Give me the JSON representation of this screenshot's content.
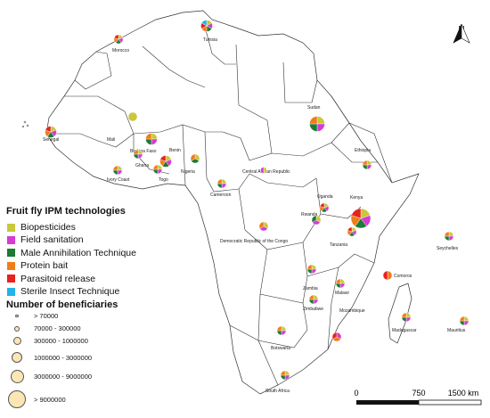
{
  "legend": {
    "title": "Fruit fly IPM technologies",
    "items": [
      {
        "label": "Biopesticides",
        "color": "#c8c83a"
      },
      {
        "label": "Field sanitation",
        "color": "#d63bd6"
      },
      {
        "label": "Male Annihilation Technique",
        "color": "#1e7a34"
      },
      {
        "label": "Protein bait",
        "color": "#f07d1a"
      },
      {
        "label": "Parasitoid release",
        "color": "#e8231e"
      },
      {
        "label": "Sterile Insect Technique",
        "color": "#22b4e6"
      }
    ]
  },
  "size_legend": {
    "title": "Number of beneficiaries",
    "items": [
      {
        "label": "> 70000"
      },
      {
        "label": "70000 - 300000"
      },
      {
        "label": "300000 - 1000000"
      },
      {
        "label": "1000000 - 3000000"
      },
      {
        "label": "3000000 - 9000000"
      },
      {
        "label": "> 9000000"
      }
    ]
  },
  "countries": {
    "morocco": "Morocco",
    "tunisia": "Tunisia",
    "sudan": "Sudan",
    "senegal": "Senegal",
    "mali": "Mali",
    "burkina": "Burkina Faso",
    "benin": "Benin",
    "ghana": "Ghana",
    "ivory": "Ivory Coast",
    "togo": "Togo",
    "nigeria": "Nigeria",
    "car": "Central African Republic",
    "ethiopia": "Ethiopia",
    "cameroon": "Cameroon",
    "uganda": "Uganda",
    "kenya": "Kenya",
    "rwanda": "Rwanda",
    "drc": "Democratic Republic of the Congo",
    "tanzania": "Tanzania",
    "seychelles": "Seychelles",
    "comoros": "Comoros",
    "zambia": "Zambia",
    "malawi": "Malawi",
    "zimbabwe": "Zimbabwe",
    "mozambique": "Mozambique",
    "madagascar": "Madagascar",
    "mauritius": "Mauritius",
    "botswana": "Botswana",
    "south_africa": "South Africa"
  },
  "scale": {
    "t0": "0",
    "t1": "750",
    "t2": "1500 km"
  },
  "north_arrow": {
    "label": "N",
    "icon": "north-arrow-icon"
  },
  "pies": [
    {
      "country": "Morocco",
      "size_class": 2,
      "tech": [
        "Biopesticides",
        "Field sanitation",
        "Male Annihilation Technique",
        "Protein bait",
        "Parasitoid release"
      ]
    },
    {
      "country": "Tunisia",
      "size_class": 3,
      "tech": [
        "Biopesticides",
        "Field sanitation",
        "Male Annihilation Technique",
        "Protein bait",
        "Parasitoid release",
        "Sterile Insect Technique"
      ]
    },
    {
      "country": "Sudan",
      "size_class": 4,
      "tech": [
        "Biopesticides",
        "Field sanitation",
        "Male Annihilation Technique",
        "Protein bait"
      ]
    },
    {
      "country": "Mali",
      "size_class": 2,
      "tech": [
        "Biopesticides"
      ]
    },
    {
      "country": "Senegal",
      "size_class": 3,
      "tech": [
        "Biopesticides",
        "Field sanitation",
        "Male Annihilation Technique",
        "Protein bait",
        "Parasitoid release"
      ]
    },
    {
      "country": "Burkina Faso",
      "size_class": 3,
      "tech": [
        "Biopesticides",
        "Field sanitation",
        "Male Annihilation Technique",
        "Protein bait"
      ]
    },
    {
      "country": "Benin",
      "size_class": 3,
      "tech": [
        "Biopesticides",
        "Field sanitation",
        "Male Annihilation Technique",
        "Protein bait",
        "Parasitoid release"
      ]
    },
    {
      "country": "Ghana",
      "size_class": 2,
      "tech": [
        "Biopesticides",
        "Field sanitation",
        "Male Annihilation Technique",
        "Protein bait"
      ]
    },
    {
      "country": "Ivory Coast",
      "size_class": 2,
      "tech": [
        "Biopesticides",
        "Field sanitation",
        "Male Annihilation Technique",
        "Protein bait"
      ]
    },
    {
      "country": "Togo",
      "size_class": 2,
      "tech": [
        "Biopesticides",
        "Field sanitation",
        "Male Annihilation Technique",
        "Protein bait"
      ]
    },
    {
      "country": "Nigeria",
      "size_class": 2,
      "tech": [
        "Biopesticides",
        "Male Annihilation Technique",
        "Protein bait"
      ]
    },
    {
      "country": "Cameroon",
      "size_class": 2,
      "tech": [
        "Biopesticides",
        "Field sanitation",
        "Male Annihilation Technique",
        "Protein bait"
      ]
    },
    {
      "country": "Central African Republic",
      "size_class": 1,
      "tech": [
        "Biopesticides",
        "Field sanitation"
      ]
    },
    {
      "country": "Ethiopia",
      "size_class": 2,
      "tech": [
        "Biopesticides",
        "Field sanitation",
        "Male Annihilation Technique",
        "Protein bait"
      ]
    },
    {
      "country": "Uganda",
      "size_class": 2,
      "tech": [
        "Biopesticides",
        "Field sanitation",
        "Male Annihilation Technique",
        "Protein bait",
        "Parasitoid release"
      ]
    },
    {
      "country": "Kenya",
      "size_class": 5,
      "tech": [
        "Biopesticides",
        "Field sanitation",
        "Male Annihilation Technique",
        "Protein bait",
        "Parasitoid release"
      ]
    },
    {
      "country": "Rwanda",
      "size_class": 2,
      "tech": [
        "Biopesticides",
        "Field sanitation",
        "Male Annihilation Technique"
      ]
    },
    {
      "country": "Democratic Republic of the Congo",
      "size_class": 2,
      "tech": [
        "Biopesticides",
        "Field sanitation",
        "Protein bait"
      ]
    },
    {
      "country": "Tanzania",
      "size_class": 2,
      "tech": [
        "Biopesticides",
        "Field sanitation",
        "Male Annihilation Technique",
        "Protein bait",
        "Parasitoid release"
      ]
    },
    {
      "country": "Seychelles",
      "size_class": 2,
      "tech": [
        "Biopesticides",
        "Field sanitation",
        "Male Annihilation Technique",
        "Protein bait"
      ]
    },
    {
      "country": "Comoros",
      "size_class": 2,
      "tech": [
        "Protein bait",
        "Parasitoid release"
      ]
    },
    {
      "country": "Zambia",
      "size_class": 2,
      "tech": [
        "Biopesticides",
        "Field sanitation",
        "Male Annihilation Technique",
        "Protein bait"
      ]
    },
    {
      "country": "Malawi",
      "size_class": 2,
      "tech": [
        "Biopesticides",
        "Field sanitation",
        "Male Annihilation Technique",
        "Protein bait"
      ]
    },
    {
      "country": "Zimbabwe",
      "size_class": 2,
      "tech": [
        "Biopesticides",
        "Field sanitation",
        "Male Annihilation Technique",
        "Protein bait"
      ]
    },
    {
      "country": "Mozambique",
      "size_class": 2,
      "tech": [
        "Field sanitation",
        "Protein bait",
        "Parasitoid release"
      ]
    },
    {
      "country": "Madagascar",
      "size_class": 2,
      "tech": [
        "Biopesticides",
        "Field sanitation",
        "Male Annihilation Technique",
        "Protein bait"
      ]
    },
    {
      "country": "Mauritius",
      "size_class": 2,
      "tech": [
        "Biopesticides",
        "Field sanitation",
        "Male Annihilation Technique",
        "Protein bait"
      ]
    },
    {
      "country": "Botswana",
      "size_class": 2,
      "tech": [
        "Biopesticides",
        "Field sanitation",
        "Male Annihilation Technique",
        "Protein bait"
      ]
    },
    {
      "country": "South Africa",
      "size_class": 2,
      "tech": [
        "Biopesticides",
        "Field sanitation",
        "Male Annihilation Technique",
        "Protein bait"
      ]
    }
  ]
}
